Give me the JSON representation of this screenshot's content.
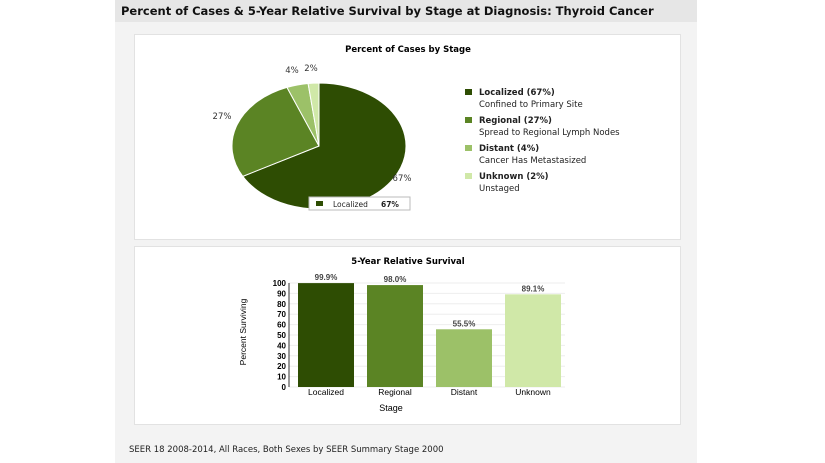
{
  "header": {
    "title": "Percent of Cases & 5-Year Relative Survival by Stage at Diagnosis: Thyroid Cancer"
  },
  "footer": {
    "text": "SEER 18 2008-2014, All Races, Both Sexes by SEER Summary Stage 2000"
  },
  "chart_data": [
    {
      "type": "pie",
      "title": "Percent of Cases by Stage",
      "slices": [
        {
          "name": "Localized",
          "value": 67,
          "label": "67%",
          "legend": "Localized (67%)",
          "desc": "Confined to Primary Site",
          "color": "#2e4d03"
        },
        {
          "name": "Regional",
          "value": 27,
          "label": "27%",
          "legend": "Regional (27%)",
          "desc": "Spread to Regional Lymph Nodes",
          "color": "#5b8424"
        },
        {
          "name": "Distant",
          "value": 4,
          "label": "4%",
          "legend": "Distant (4%)",
          "desc": "Cancer Has Metastasized",
          "color": "#9cc168"
        },
        {
          "name": "Unknown",
          "value": 2,
          "label": "2%",
          "legend": "Unknown (2%)",
          "desc": "Unstaged",
          "color": "#d0e8a8"
        }
      ],
      "legend": "right",
      "tooltip": {
        "name": "Localized",
        "value": "67%"
      }
    },
    {
      "type": "bar",
      "title": "5-Year Relative Survival",
      "xlabel": "Stage",
      "ylabel": "Percent Surviving",
      "ylim": [
        0,
        100
      ],
      "yticks": [
        0,
        10,
        20,
        30,
        40,
        50,
        60,
        70,
        80,
        90,
        100
      ],
      "categories": [
        "Localized",
        "Regional",
        "Distant",
        "Unknown"
      ],
      "values": [
        99.9,
        98.0,
        55.5,
        89.1
      ],
      "labels": [
        "99.9%",
        "98.0%",
        "55.5%",
        "89.1%"
      ],
      "colors": [
        "#2e4d03",
        "#5b8424",
        "#9cc168",
        "#d0e8a8"
      ]
    }
  ]
}
